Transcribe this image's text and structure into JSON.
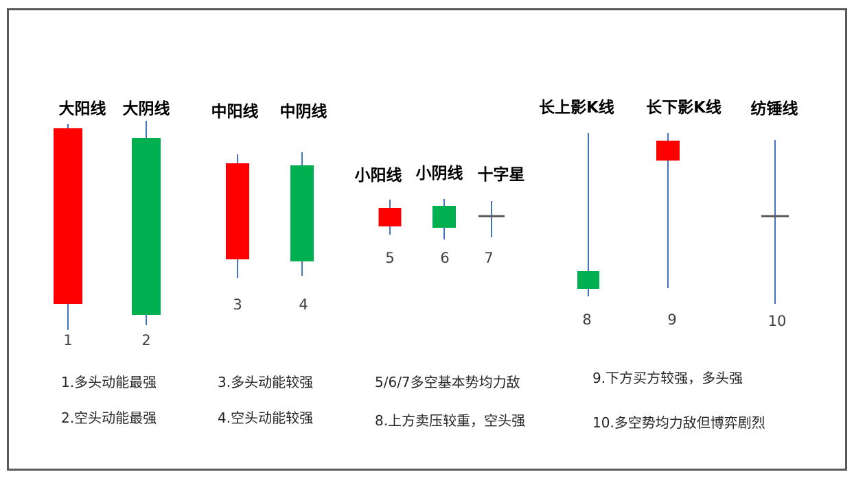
{
  "colors": {
    "bullish": "#ff0000",
    "bearish": "#00b050",
    "wick": "#4472c4",
    "doji": "#595959",
    "frame": "#595959"
  },
  "candles": [
    {
      "title": "大阳线",
      "number": "1",
      "type": "bullish"
    },
    {
      "title": "大阴线",
      "number": "2",
      "type": "bearish"
    },
    {
      "title": "中阳线",
      "number": "3",
      "type": "bullish"
    },
    {
      "title": "中阴线",
      "number": "4",
      "type": "bearish"
    },
    {
      "title": "小阳线",
      "number": "5",
      "type": "bullish"
    },
    {
      "title": "小阴线",
      "number": "6",
      "type": "bearish"
    },
    {
      "title": "十字星",
      "number": "7",
      "type": "doji"
    },
    {
      "title": "长上影K线",
      "number": "8",
      "type": "bearish"
    },
    {
      "title": "长下影K线",
      "number": "9",
      "type": "bullish"
    },
    {
      "title": "纺锤线",
      "number": "10",
      "type": "doji"
    }
  ],
  "notes": [
    "1.多头动能最强",
    "2.空头动能最强",
    "3.多头动能较强",
    "4.空头动能较强",
    "5/6/7多空基本势均力敌",
    "8.上方卖压较重，空头强",
    "9.下方买方较强，多头强",
    "10.多空势均力敌但博弈剧烈"
  ]
}
